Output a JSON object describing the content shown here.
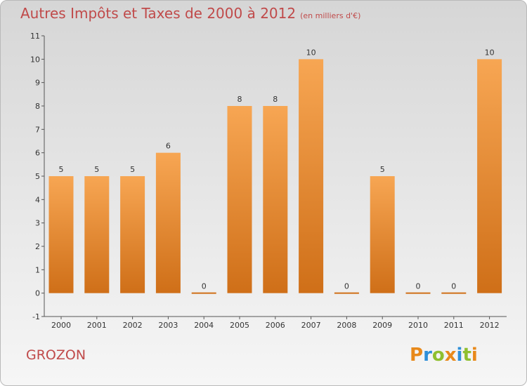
{
  "header": {
    "title": "Autres Impôts et Taxes de 2000 à 2012",
    "unit": "(en milliers d'€)"
  },
  "footer": {
    "commune": "GROZON",
    "logo": "Proxiti"
  },
  "colors": {
    "bar_top": "#f7a653",
    "bar_bottom": "#cf6f18",
    "title": "#c04a4a",
    "logo_letters": [
      "#e8891a",
      "#2e8fd8",
      "#8fbf2f",
      "#e8891a",
      "#2e8fd8",
      "#8fbf2f",
      "#e8891a"
    ]
  },
  "chart_data": {
    "type": "bar",
    "title": "Autres Impôts et Taxes de 2000 à 2012",
    "xlabel": "",
    "ylabel": "",
    "categories": [
      "2000",
      "2001",
      "2002",
      "2003",
      "2004",
      "2005",
      "2006",
      "2007",
      "2008",
      "2009",
      "2010",
      "2011",
      "2012"
    ],
    "values": [
      5,
      5,
      5,
      6,
      0,
      8,
      8,
      10,
      0,
      5,
      0,
      0,
      10
    ],
    "ylim": [
      -1,
      11
    ],
    "yticks": [
      "-1",
      "0",
      "1",
      "2",
      "3",
      "4",
      "5",
      "6",
      "7",
      "8",
      "9",
      "10",
      "11"
    ],
    "grid": false,
    "legend": "none"
  }
}
